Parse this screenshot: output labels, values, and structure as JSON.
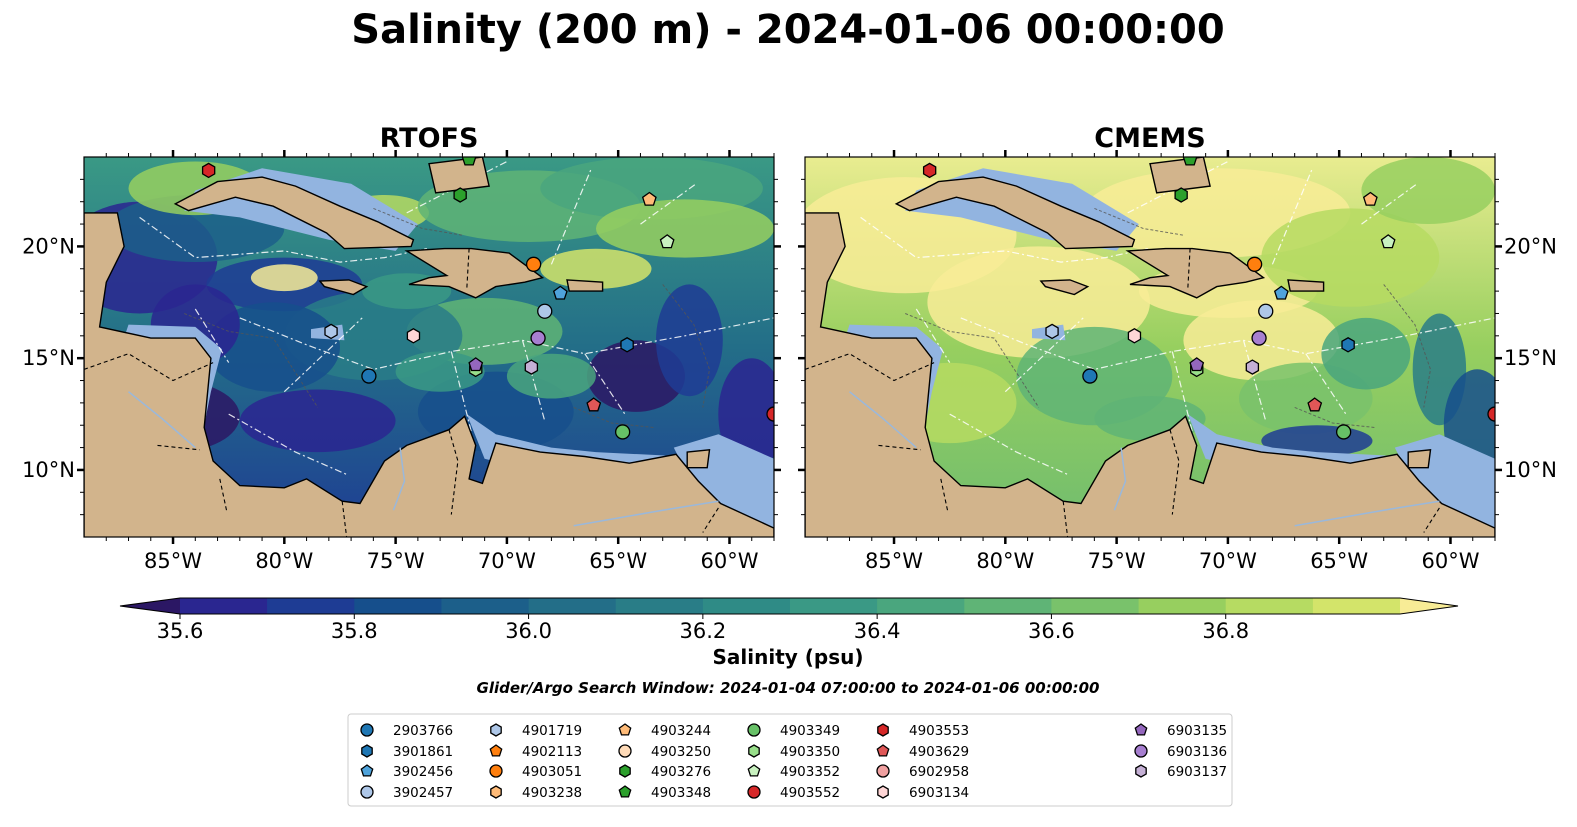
{
  "title": "Salinity (200 m) - 2024-01-06 00:00:00",
  "colors": {
    "land": "#d2b48c",
    "shelf_water": "#92b4e0",
    "coastline": "#000000",
    "border": "#000000",
    "eez_line": "#ffffff",
    "river": "#9ab8db",
    "scale": [
      "#2b1764",
      "#2a2690",
      "#1e3c94",
      "#164f8c",
      "#1c5f8a",
      "#236e88",
      "#297d87",
      "#2f8b86",
      "#3a9985",
      "#4aa67e",
      "#5fb476",
      "#79c26b",
      "#97cf5f",
      "#b6db62",
      "#d3e46a",
      "#f8ec96"
    ]
  },
  "chart_data": [
    {
      "type": "heatmap",
      "title": "RTOFS",
      "variable": "Salinity (200 m)",
      "xlabel": "",
      "ylabel": "",
      "xlim": [
        -89,
        -58
      ],
      "ylim": [
        7,
        24
      ],
      "xticks": [
        "85°W",
        "80°W",
        "75°W",
        "70°W",
        "65°W",
        "60°W"
      ],
      "yticks": [
        "20°N",
        "15°N",
        "10°N"
      ],
      "ytick_side": "left",
      "character": "mostly 35.7-36.4 psu; fresh (dark) Gulf of Honduras, Colombian basin and along Lesser Antilles; saltier eddies near Cuba and Hispaniola",
      "contours_m": [
        100,
        1000
      ]
    },
    {
      "type": "heatmap",
      "title": "CMEMS",
      "variable": "Salinity (200 m)",
      "xlabel": "",
      "ylabel": "",
      "xlim": [
        -89,
        -58
      ],
      "ylim": [
        7,
        24
      ],
      "xticks": [
        "85°W",
        "80°W",
        "75°W",
        "70°W",
        "65°W",
        "60°W"
      ],
      "yticks": [
        "20°N",
        "15°N",
        "10°N"
      ],
      "ytick_side": "right",
      "character": "mostly 36.4-36.9 psu (saltier than RTOFS); fresh water only in the Pacific and off the Lesser Antilles",
      "contours_m": [
        100,
        1000
      ]
    },
    {
      "type": "colorbar",
      "label": "Salinity (psu)",
      "range": [
        35.6,
        37.0
      ],
      "step": 0.1,
      "extend": "both",
      "ticks": [
        "35.6",
        "35.8",
        "36.0",
        "36.2",
        "36.4",
        "36.6",
        "36.8"
      ]
    },
    {
      "type": "scatter",
      "caption": "Glider/Argo Search Window: 2024-01-04 07:00:00 to 2024-01-06 00:00:00",
      "floats": [
        {
          "id": "2903766",
          "marker": "circle",
          "color": "#1f77b4",
          "lon": -76.2,
          "lat": 14.2
        },
        {
          "id": "3901861",
          "marker": "hexagon",
          "color": "#1f77b4",
          "lon": -64.6,
          "lat": 15.6
        },
        {
          "id": "3902456",
          "marker": "pentagon",
          "color": "#4fa3db",
          "lon": -67.6,
          "lat": 17.9
        },
        {
          "id": "3902457",
          "marker": "circle",
          "color": "#aec7e8",
          "lon": -68.3,
          "lat": 17.1
        },
        {
          "id": "4901719",
          "marker": "hexagon",
          "color": "#aec7e8",
          "lon": -77.9,
          "lat": 16.2
        },
        {
          "id": "4902113",
          "marker": "pentagon",
          "color": "#ff7f0e",
          "lon": null,
          "lat": null
        },
        {
          "id": "4903051",
          "marker": "circle",
          "color": "#ff7f0e",
          "lon": -68.8,
          "lat": 19.2
        },
        {
          "id": "4903238",
          "marker": "hexagon",
          "color": "#ffbb78",
          "lon": null,
          "lat": null
        },
        {
          "id": "4903244",
          "marker": "pentagon",
          "color": "#ffbb78",
          "lon": -63.6,
          "lat": 22.1
        },
        {
          "id": "4903250",
          "marker": "circle",
          "color": "#ffdbb8",
          "lon": null,
          "lat": null
        },
        {
          "id": "4903276",
          "marker": "hexagon",
          "color": "#2ca02c",
          "lon": -72.1,
          "lat": 22.3
        },
        {
          "id": "4903348",
          "marker": "pentagon",
          "color": "#2ca02c",
          "lon": -71.7,
          "lat": 23.9
        },
        {
          "id": "4903349",
          "marker": "circle",
          "color": "#67c167",
          "lon": -64.8,
          "lat": 11.7
        },
        {
          "id": "4903350",
          "marker": "hexagon",
          "color": "#98df8a",
          "lon": -71.4,
          "lat": 14.5
        },
        {
          "id": "4903352",
          "marker": "pentagon",
          "color": "#c9f2c0",
          "lon": -62.8,
          "lat": 20.2
        },
        {
          "id": "4903552",
          "marker": "circle",
          "color": "#d62728",
          "lon": -58,
          "lat": 12.5
        },
        {
          "id": "4903553",
          "marker": "hexagon",
          "color": "#d62728",
          "lon": -83.4,
          "lat": 23.4
        },
        {
          "id": "4903629",
          "marker": "pentagon",
          "color": "#e05757",
          "lon": -66.1,
          "lat": 12.9
        },
        {
          "id": "6902958",
          "marker": "circle",
          "color": "#f0a0a0",
          "lon": null,
          "lat": null
        },
        {
          "id": "6903134",
          "marker": "hexagon",
          "color": "#ffd6d6",
          "lon": -74.2,
          "lat": 16.0
        },
        {
          "id": "6903135",
          "marker": "pentagon",
          "color": "#9467bd",
          "lon": -71.4,
          "lat": 14.7
        },
        {
          "id": "6903136",
          "marker": "circle",
          "color": "#a77fd0",
          "lon": -68.6,
          "lat": 15.9
        },
        {
          "id": "6903137",
          "marker": "hexagon",
          "color": "#c5b0d5",
          "lon": -68.9,
          "lat": 14.6
        }
      ]
    }
  ]
}
